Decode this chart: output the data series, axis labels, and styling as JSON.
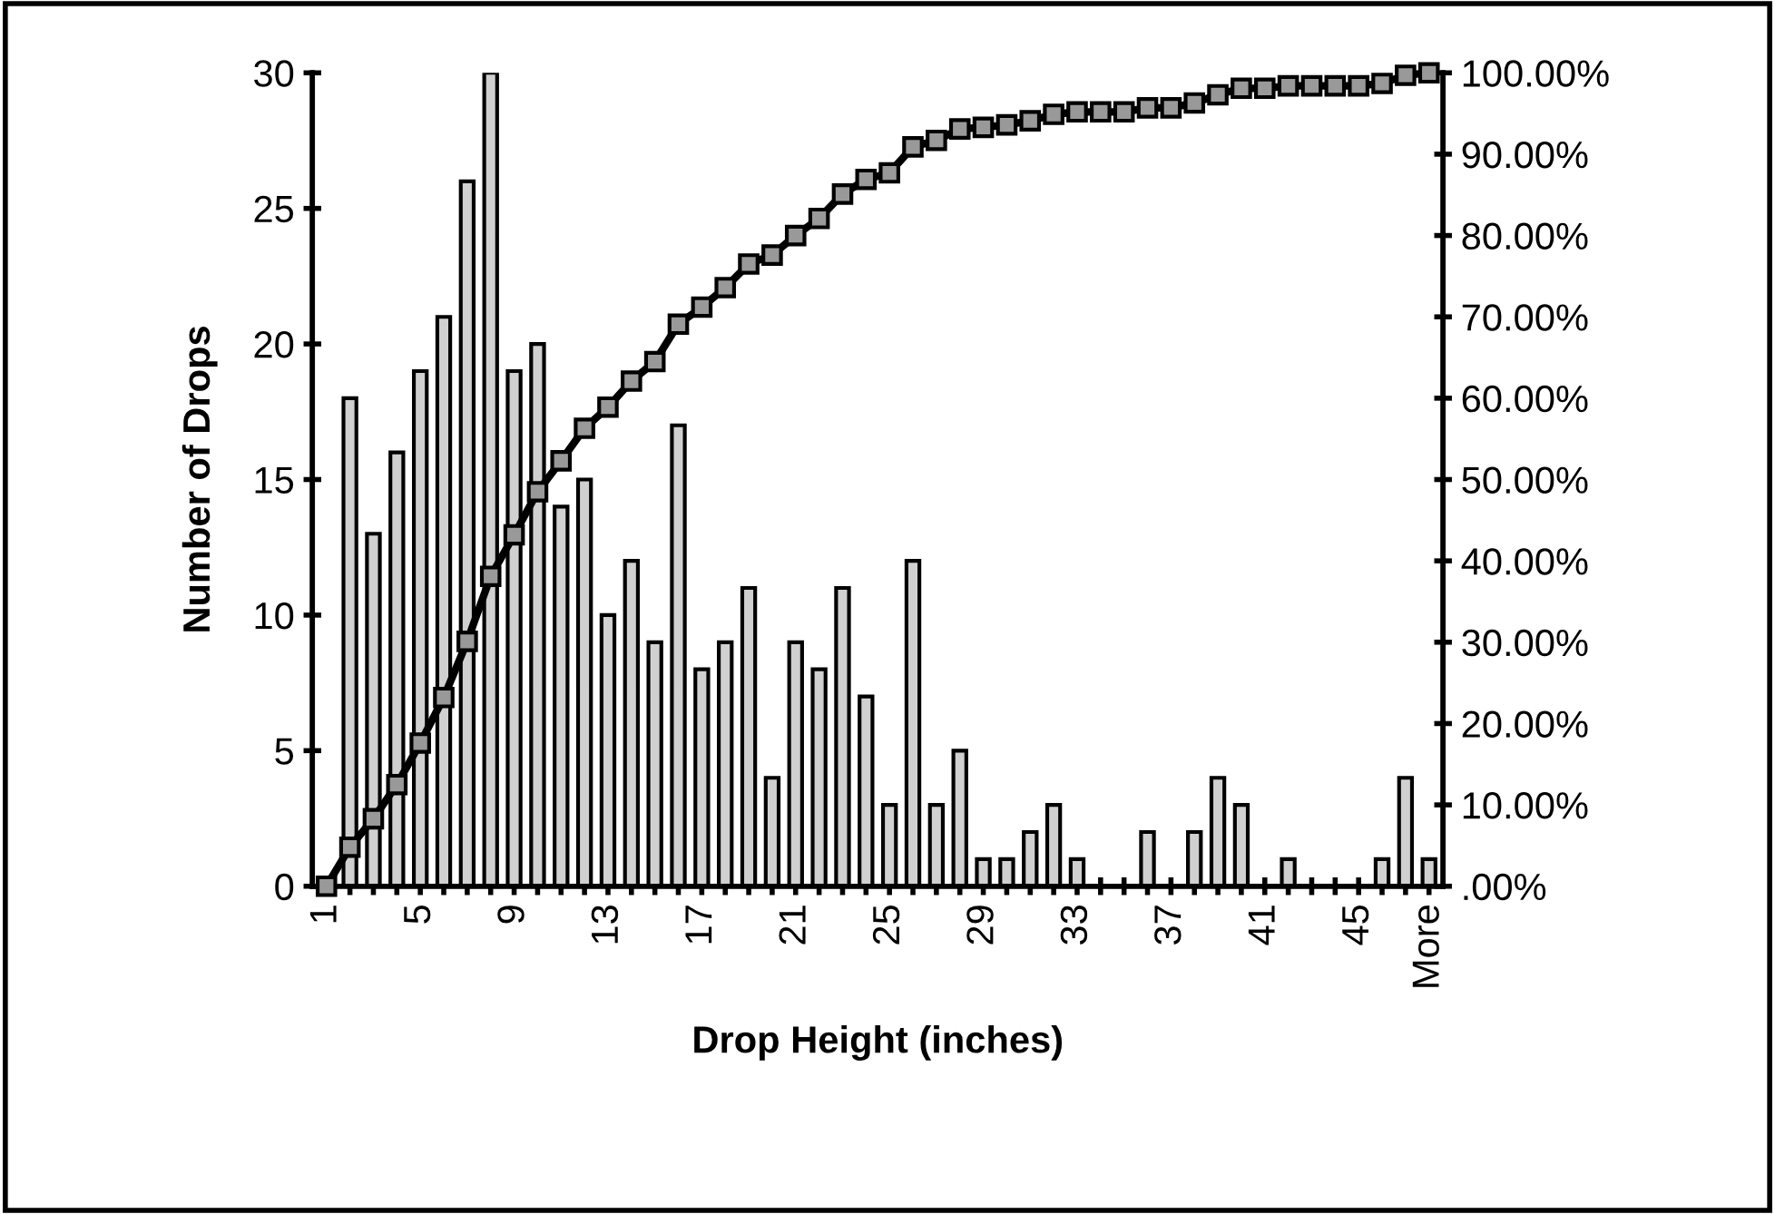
{
  "chart_data": {
    "type": "bar",
    "xlabel": "Drop Height (inches)",
    "ylabel": "Number of Drops",
    "categories": [
      "1",
      null,
      null,
      null,
      "5",
      null,
      null,
      null,
      "9",
      null,
      null,
      null,
      "13",
      null,
      null,
      null,
      "17",
      null,
      null,
      null,
      "21",
      null,
      null,
      null,
      "25",
      null,
      null,
      null,
      "29",
      null,
      null,
      null,
      "33",
      null,
      null,
      null,
      "37",
      null,
      null,
      null,
      "41",
      null,
      null,
      null,
      "45",
      null,
      null,
      "More"
    ],
    "series": [
      {
        "color": "#d0d0d0",
        "values": [
          0,
          18,
          13,
          16,
          19,
          21,
          26,
          30,
          19,
          20,
          14,
          15,
          10,
          12,
          9,
          17,
          8,
          9,
          11,
          4,
          9,
          8,
          11,
          7,
          3,
          12,
          3,
          5,
          1,
          1,
          2,
          3,
          1,
          0,
          0,
          2,
          0,
          2,
          4,
          3,
          0,
          1,
          0,
          0,
          0,
          1,
          4,
          1
        ]
      },
      {
        "type": "line",
        "axis": "y2",
        "color": "#000000",
        "marker": "square",
        "line_style": "solid",
        "values": [
          0,
          4.8,
          8.3,
          12.5,
          17.6,
          23.2,
          30.1,
          38.1,
          43.2,
          48.5,
          52.3,
          56.3,
          58.9,
          62.1,
          64.5,
          69.1,
          71.2,
          73.6,
          76.5,
          77.6,
          80.0,
          82.1,
          85.1,
          86.9,
          87.7,
          90.9,
          91.7,
          93.1,
          93.3,
          93.6,
          94.1,
          94.9,
          95.2,
          95.2,
          95.2,
          95.7,
          95.7,
          96.3,
          97.3,
          98.1,
          98.1,
          98.4,
          98.4,
          98.4,
          98.4,
          98.7,
          99.7,
          100
        ]
      }
    ],
    "ylim": [
      0,
      30
    ],
    "yticks": [
      0,
      5,
      10,
      15,
      20,
      25,
      30
    ],
    "y2lim": [
      0,
      100
    ],
    "y2ticks": [
      {
        "value": 0,
        "label": ".00%"
      },
      {
        "value": 10,
        "label": "10.00%"
      },
      {
        "value": 20,
        "label": "20.00%"
      },
      {
        "value": 30,
        "label": "30.00%"
      },
      {
        "value": 40,
        "label": "40.00%"
      },
      {
        "value": 50,
        "label": "50.00%"
      },
      {
        "value": 60,
        "label": "60.00%"
      },
      {
        "value": 70,
        "label": "70.00%"
      },
      {
        "value": 80,
        "label": "80.00%"
      },
      {
        "value": 90,
        "label": "90.00%"
      },
      {
        "value": 100,
        "label": "100.00%"
      }
    ],
    "grid": false
  }
}
